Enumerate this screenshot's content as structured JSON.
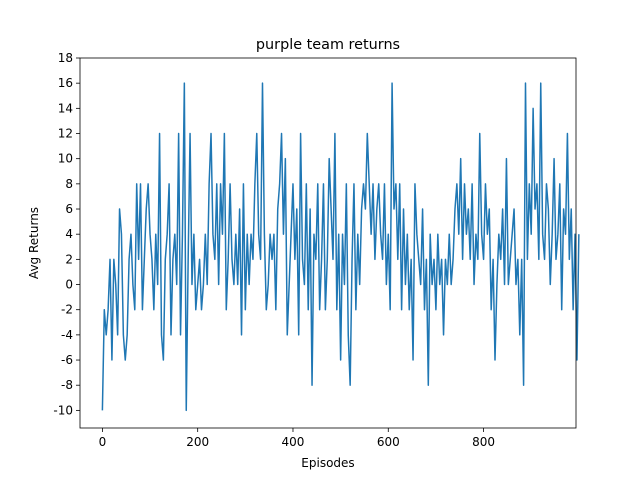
{
  "chart_data": {
    "type": "line",
    "title": "purple team returns",
    "xlabel": "Episodes",
    "ylabel": "Avg Returns",
    "xlim": [
      -47,
      994
    ],
    "ylim": [
      -11.4,
      18
    ],
    "xticks": [
      0,
      200,
      400,
      600,
      800
    ],
    "yticks": [
      -10,
      -8,
      -6,
      -4,
      -2,
      0,
      2,
      4,
      6,
      8,
      10,
      12,
      14,
      16,
      18
    ],
    "grid": false,
    "legend": "none",
    "series": [
      {
        "color": "#1f77b4",
        "x_start": 0,
        "x_step": 4,
        "values": [
          -10,
          -2,
          -4,
          -2,
          2,
          -6,
          2,
          0,
          -4,
          6,
          4,
          -4,
          -6,
          -4,
          2,
          4,
          0,
          -2,
          8,
          2,
          8,
          -2,
          2,
          6,
          8,
          4,
          2,
          -2,
          4,
          0,
          12,
          -4,
          -6,
          2,
          4,
          8,
          -4,
          2,
          4,
          0,
          12,
          -4,
          4,
          16,
          -10,
          2,
          12,
          0,
          4,
          -2,
          0,
          2,
          -2,
          0,
          4,
          0,
          8,
          12,
          4,
          2,
          8,
          0,
          8,
          4,
          12,
          -2,
          2,
          8,
          2,
          0,
          4,
          0,
          6,
          -4,
          8,
          -2,
          4,
          0,
          4,
          2,
          8,
          12,
          4,
          2,
          16,
          4,
          -2,
          0,
          4,
          2,
          4,
          -2,
          6,
          8,
          12,
          4,
          10,
          -4,
          0,
          4,
          8,
          2,
          6,
          -4,
          12,
          2,
          0,
          8,
          -2,
          6,
          -8,
          4,
          2,
          8,
          -2,
          2,
          8,
          -2,
          2,
          10,
          6,
          2,
          12,
          -2,
          4,
          -6,
          4,
          0,
          8,
          -4,
          -8,
          2,
          8,
          -2,
          4,
          0,
          6,
          8,
          6,
          12,
          8,
          4,
          8,
          2,
          6,
          8,
          4,
          2,
          8,
          0,
          4,
          -2,
          16,
          6,
          8,
          2,
          8,
          -2,
          6,
          0,
          4,
          -2,
          2,
          -6,
          8,
          4,
          2,
          0,
          6,
          -2,
          2,
          -8,
          4,
          0,
          2,
          -2,
          4,
          0,
          2,
          -4,
          2,
          0,
          4,
          0,
          2,
          6,
          8,
          4,
          10,
          2,
          8,
          4,
          6,
          2,
          8,
          0,
          4,
          2,
          12,
          4,
          2,
          8,
          4,
          6,
          -2,
          2,
          -6,
          0,
          4,
          2,
          6,
          0,
          10,
          0,
          2,
          4,
          6,
          0,
          2,
          -4,
          2,
          -8,
          16,
          2,
          8,
          4,
          14,
          6,
          8,
          2,
          16,
          4,
          2,
          8,
          6,
          0,
          4,
          10,
          2,
          4,
          8,
          -2,
          6,
          4,
          12,
          2,
          6,
          -2,
          4,
          -6,
          4
        ]
      }
    ]
  }
}
